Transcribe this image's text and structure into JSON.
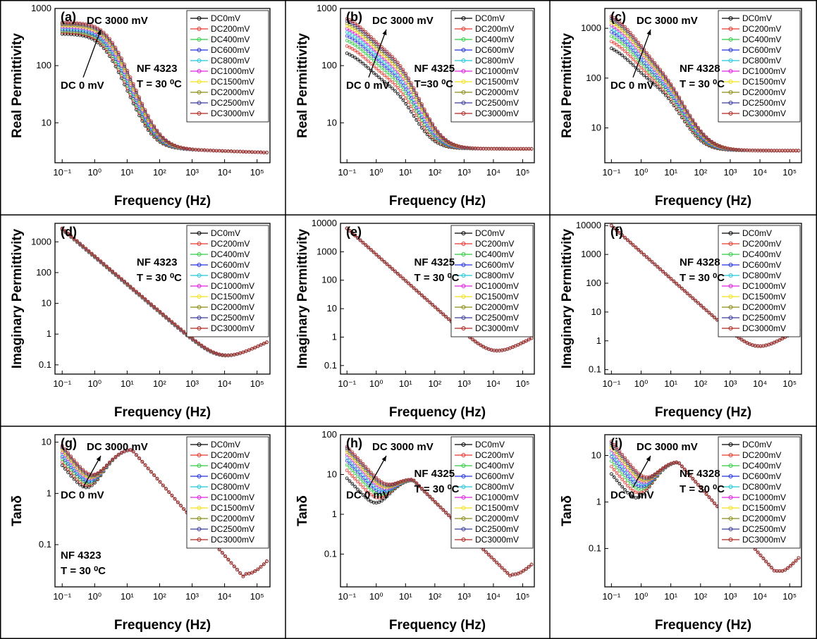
{
  "series_names": [
    "DC0mV",
    "DC200mV",
    "DC400mV",
    "DC600mV",
    "DC800mV",
    "DC1000mV",
    "DC1500mV",
    "DC2000mV",
    "DC2500mV",
    "DC3000mV"
  ],
  "series_colors": [
    "#000000",
    "#e8362c",
    "#2ecc40",
    "#2233dd",
    "#22c8d8",
    "#e020e0",
    "#f2e21a",
    "#8a8a14",
    "#3a3a9a",
    "#b0241c"
  ],
  "axis_labels": {
    "x": "Frequency (Hz)",
    "real": "Real Permittivity",
    "imag": "Imaginary Permittivity",
    "tan": "Tanδ"
  },
  "chart_data": [
    {
      "id": "a",
      "type": "scatter",
      "panel_label": "(a)",
      "sample": "NF 4323",
      "temperature": "T = 30 ⁰C",
      "ylabel": "Real Permittivity",
      "xlabel": "Frequency (Hz)",
      "xscale": "log",
      "yscale": "log",
      "xlim": [
        0.06,
        250000
      ],
      "ylim": [
        2,
        1000
      ],
      "x_ticks": [
        "10⁻¹",
        "10⁰",
        "10¹",
        "10²",
        "10³",
        "10⁴",
        "10⁵"
      ],
      "y_ticks": [
        "10",
        "100",
        "1000"
      ],
      "annotations": [
        "DC 3000 mV",
        "DC 0 mV"
      ],
      "legend": "top-right",
      "model": {
        "kind": "real",
        "high": 3.5,
        "low_start": 360,
        "low_end": 570,
        "fc_start": 2.2,
        "fc_end": 3.0,
        "width": 1.5,
        "tail_slope": 0.02
      }
    },
    {
      "id": "b",
      "type": "scatter",
      "panel_label": "(b)",
      "sample": "NF 4325",
      "temperature": "T=30 ⁰C",
      "ylabel": "Real Permittivity",
      "xlabel": "Frequency (Hz)",
      "xscale": "log",
      "yscale": "log",
      "xlim": [
        0.06,
        250000
      ],
      "ylim": [
        2,
        1000
      ],
      "x_ticks": [
        "10⁻¹",
        "10⁰",
        "10¹",
        "10²",
        "10³",
        "10⁴",
        "10⁵"
      ],
      "y_ticks": [
        "10",
        "100",
        "1000"
      ],
      "annotations": [
        "DC 3000 mV",
        "DC 0 mV"
      ],
      "legend": "top-right",
      "model": {
        "kind": "real2",
        "high": 3.5,
        "mid_start": 40,
        "mid_end": 140,
        "low_start": 210,
        "low_end": 850,
        "fc": 8,
        "fp": 0.25,
        "width": 1.4
      }
    },
    {
      "id": "c",
      "type": "scatter",
      "panel_label": "(c)",
      "sample": "NF 4328",
      "temperature": "T = 30 ⁰C",
      "ylabel": "Real Permittivity",
      "xlabel": "Frequency (Hz)",
      "xscale": "log",
      "yscale": "log",
      "xlim": [
        0.06,
        250000
      ],
      "ylim": [
        2,
        2500
      ],
      "x_ticks": [
        "10⁻¹",
        "10⁰",
        "10¹",
        "10²",
        "10³",
        "10⁴",
        "10⁵"
      ],
      "y_ticks": [
        "10",
        "100",
        "1000"
      ],
      "annotations": [
        "DC 3000 mV",
        "DC 0 mV"
      ],
      "legend": "top-right",
      "model": {
        "kind": "real2",
        "high": 3.5,
        "mid_start": 60,
        "mid_end": 100,
        "low_start": 550,
        "low_end": 2500,
        "fc": 8,
        "fp": 0.2,
        "width": 1.4
      }
    },
    {
      "id": "d",
      "type": "scatter",
      "panel_label": "(d)",
      "sample": "NF 4323",
      "temperature": "T = 30 ⁰C",
      "ylabel": "Imaginary Permittivity",
      "xlabel": "Frequency (Hz)",
      "xscale": "log",
      "yscale": "log",
      "xlim": [
        0.06,
        250000
      ],
      "ylim": [
        0.05,
        4000
      ],
      "x_ticks": [
        "10⁻¹",
        "10⁰",
        "10¹",
        "10²",
        "10³",
        "10⁴",
        "10⁵"
      ],
      "y_ticks": [
        "0.1",
        "1",
        "10",
        "100",
        "1000"
      ],
      "annotations": [],
      "legend": "top-right",
      "model": {
        "kind": "imag",
        "a": 330,
        "slope": 0.9,
        "b": 0.0012,
        "rise": 0.5,
        "spread": 0.1
      }
    },
    {
      "id": "e",
      "type": "scatter",
      "panel_label": "(e)",
      "sample": "NF 4325",
      "temperature": "T = 30 ⁰C",
      "ylabel": "Imaginary Permittivity",
      "xlabel": "Frequency (Hz)",
      "xscale": "log",
      "yscale": "log",
      "xlim": [
        0.06,
        250000
      ],
      "ylim": [
        0.05,
        10000
      ],
      "x_ticks": [
        "10⁻¹",
        "10⁰",
        "10¹",
        "10²",
        "10³",
        "10⁴",
        "10⁵"
      ],
      "y_ticks": [
        "0.1",
        "1",
        "10",
        "100",
        "1000",
        "10000"
      ],
      "annotations": [],
      "legend": "top-right",
      "model": {
        "kind": "imag",
        "a": 800,
        "slope": 0.92,
        "b": 0.0011,
        "rise": 0.55,
        "spread": 0.02
      }
    },
    {
      "id": "f",
      "type": "scatter",
      "panel_label": "(f)",
      "sample": "NF 4328",
      "temperature": "T = 30 ⁰C",
      "ylabel": "Imaginary Permittivity",
      "xlabel": "Frequency (Hz)",
      "xscale": "log",
      "yscale": "log",
      "xlim": [
        0.06,
        250000
      ],
      "ylim": [
        0.07,
        12000
      ],
      "x_ticks": [
        "10⁻¹",
        "10⁰",
        "10¹",
        "10²",
        "10³",
        "10⁴",
        "10⁵"
      ],
      "y_ticks": [
        "0.1",
        "1",
        "10",
        "100",
        "1000",
        "10000"
      ],
      "annotations": [],
      "legend": "top-right",
      "model": {
        "kind": "imag",
        "a": 1200,
        "slope": 0.92,
        "b": 0.0016,
        "rise": 0.6,
        "spread": 0.02
      }
    },
    {
      "id": "g",
      "type": "scatter",
      "panel_label": "(g)",
      "sample": "NF 4323",
      "temperature": "T = 30 ⁰C",
      "ylabel": "Tanδ",
      "xlabel": "Frequency (Hz)",
      "xscale": "log",
      "yscale": "log",
      "xlim": [
        0.06,
        250000
      ],
      "ylim": [
        0.015,
        14
      ],
      "x_ticks": [
        "10⁻¹",
        "10⁰",
        "10¹",
        "10²",
        "10³",
        "10⁴",
        "10⁵"
      ],
      "y_ticks": [
        "0.1",
        "1",
        "10"
      ],
      "annotations": [
        "DC 3000 mV",
        "DC 0 mV"
      ],
      "legend": "top-right",
      "model": {
        "kind": "tan",
        "peak": 7,
        "fpeak": 14,
        "low_start": 3.5,
        "low_end": 8.5,
        "dip": 1.3,
        "fmin": 40000,
        "min": 0.022
      }
    },
    {
      "id": "h",
      "type": "scatter",
      "panel_label": "(h)",
      "sample": "NF 4325",
      "temperature": "T = 30 ⁰C",
      "ylabel": "Tanδ",
      "xlabel": "Frequency (Hz)",
      "xscale": "log",
      "yscale": "log",
      "xlim": [
        0.06,
        250000
      ],
      "ylim": [
        0.015,
        100
      ],
      "x_ticks": [
        "10⁻¹",
        "10⁰",
        "10¹",
        "10²",
        "10³",
        "10⁴",
        "10⁵"
      ],
      "y_ticks": [
        "0.1",
        "1",
        "10",
        "100"
      ],
      "annotations": [
        "DC 3000 mV",
        "DC 0 mV"
      ],
      "legend": "top-right",
      "model": {
        "kind": "tan",
        "peak": 7,
        "fpeak": 18,
        "low_start": 8,
        "low_end": 50,
        "dip": 4.5,
        "fmin": 45000,
        "min": 0.028
      }
    },
    {
      "id": "i",
      "type": "scatter",
      "panel_label": "(i)",
      "sample": "NF 4328",
      "temperature": "T = 30 ⁰C",
      "ylabel": "Tanδ",
      "xlabel": "Frequency (Hz)",
      "xscale": "log",
      "yscale": "log",
      "xlim": [
        0.06,
        250000
      ],
      "ylim": [
        0.015,
        28
      ],
      "x_ticks": [
        "10⁻¹",
        "10⁰",
        "10¹",
        "10²",
        "10³",
        "10⁴",
        "10⁵"
      ],
      "y_ticks": [
        "0.1",
        "1",
        "10"
      ],
      "annotations": [
        "DC 3000 mV",
        "DC 0 mV"
      ],
      "legend": "top-right",
      "model": {
        "kind": "tan",
        "peak": 7,
        "fpeak": 18,
        "low_start": 4,
        "low_end": 20,
        "dip": 4.2,
        "fmin": 45000,
        "min": 0.033
      }
    }
  ]
}
